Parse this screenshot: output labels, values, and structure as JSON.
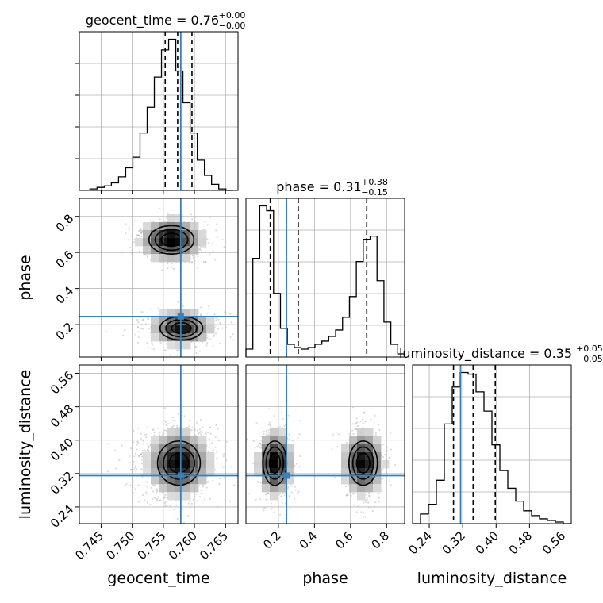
{
  "chart_data": {
    "type": "corner",
    "parameters": [
      "geocent_time",
      "phase",
      "luminosity_distance"
    ],
    "titles": [
      {
        "param": "geocent_time",
        "text": "geocent_time = 0.76",
        "sup": "+0.00",
        "sub": "−0.00"
      },
      {
        "param": "phase",
        "text": "phase = 0.31",
        "sup": "+0.38",
        "sub": "−0.15"
      },
      {
        "param": "luminosity_distance",
        "text": "luminosity_distance = 0.35",
        "sup": "+0.05",
        "sub": "−0.05"
      }
    ],
    "axes": {
      "geocent_time": {
        "range": [
          0.7415,
          0.767
        ],
        "ticks": [
          0.745,
          0.75,
          0.755,
          0.76,
          0.765
        ],
        "tick_labels": [
          "0.745",
          "0.750",
          "0.755",
          "0.760",
          "0.765"
        ]
      },
      "phase": {
        "range": [
          0.02,
          0.9
        ],
        "ticks": [
          0.2,
          0.4,
          0.6,
          0.8
        ],
        "tick_labels": [
          "0.2",
          "0.4",
          "0.6",
          "0.8"
        ]
      },
      "luminosity_distance": {
        "range": [
          0.2,
          0.58
        ],
        "ticks": [
          0.24,
          0.32,
          0.4,
          0.48,
          0.56
        ],
        "tick_labels": [
          "0.24",
          "0.32",
          "0.40",
          "0.48",
          "0.56"
        ]
      }
    },
    "truths": {
      "geocent_time": 0.7578,
      "phase": 0.245,
      "luminosity_distance": 0.315
    },
    "quantiles": {
      "geocent_time": [
        0.7553,
        0.7573,
        0.7596
      ],
      "phase": [
        0.155,
        0.31,
        0.69
      ],
      "luminosity_distance": [
        0.298,
        0.345,
        0.398
      ]
    },
    "histograms": {
      "geocent_time": {
        "edges_range": [
          0.7432,
          0.7662
        ],
        "counts": [
          1,
          2,
          3,
          5,
          9,
          15,
          22,
          38,
          55,
          75,
          93,
          100,
          79,
          58,
          38,
          20,
          10,
          4,
          1,
          0
        ]
      },
      "phase": {
        "edges_range": [
          0.02,
          0.9
        ],
        "counts": [
          5,
          62,
          95,
          92,
          40,
          18,
          8,
          6,
          5,
          6,
          8,
          10,
          13,
          17,
          25,
          38,
          60,
          74,
          76,
          48,
          22,
          8,
          2
        ]
      },
      "luminosity_distance": {
        "edges_range": [
          0.2,
          0.58
        ],
        "counts": [
          0,
          6,
          12,
          27,
          62,
          85,
          94,
          93,
          82,
          70,
          49,
          33,
          22,
          14,
          8,
          5,
          3,
          2,
          1,
          0
        ]
      }
    },
    "grid": true,
    "density_colors": [
      "#ffffff",
      "#000000"
    ],
    "truth_color": "#3b7fb5"
  }
}
